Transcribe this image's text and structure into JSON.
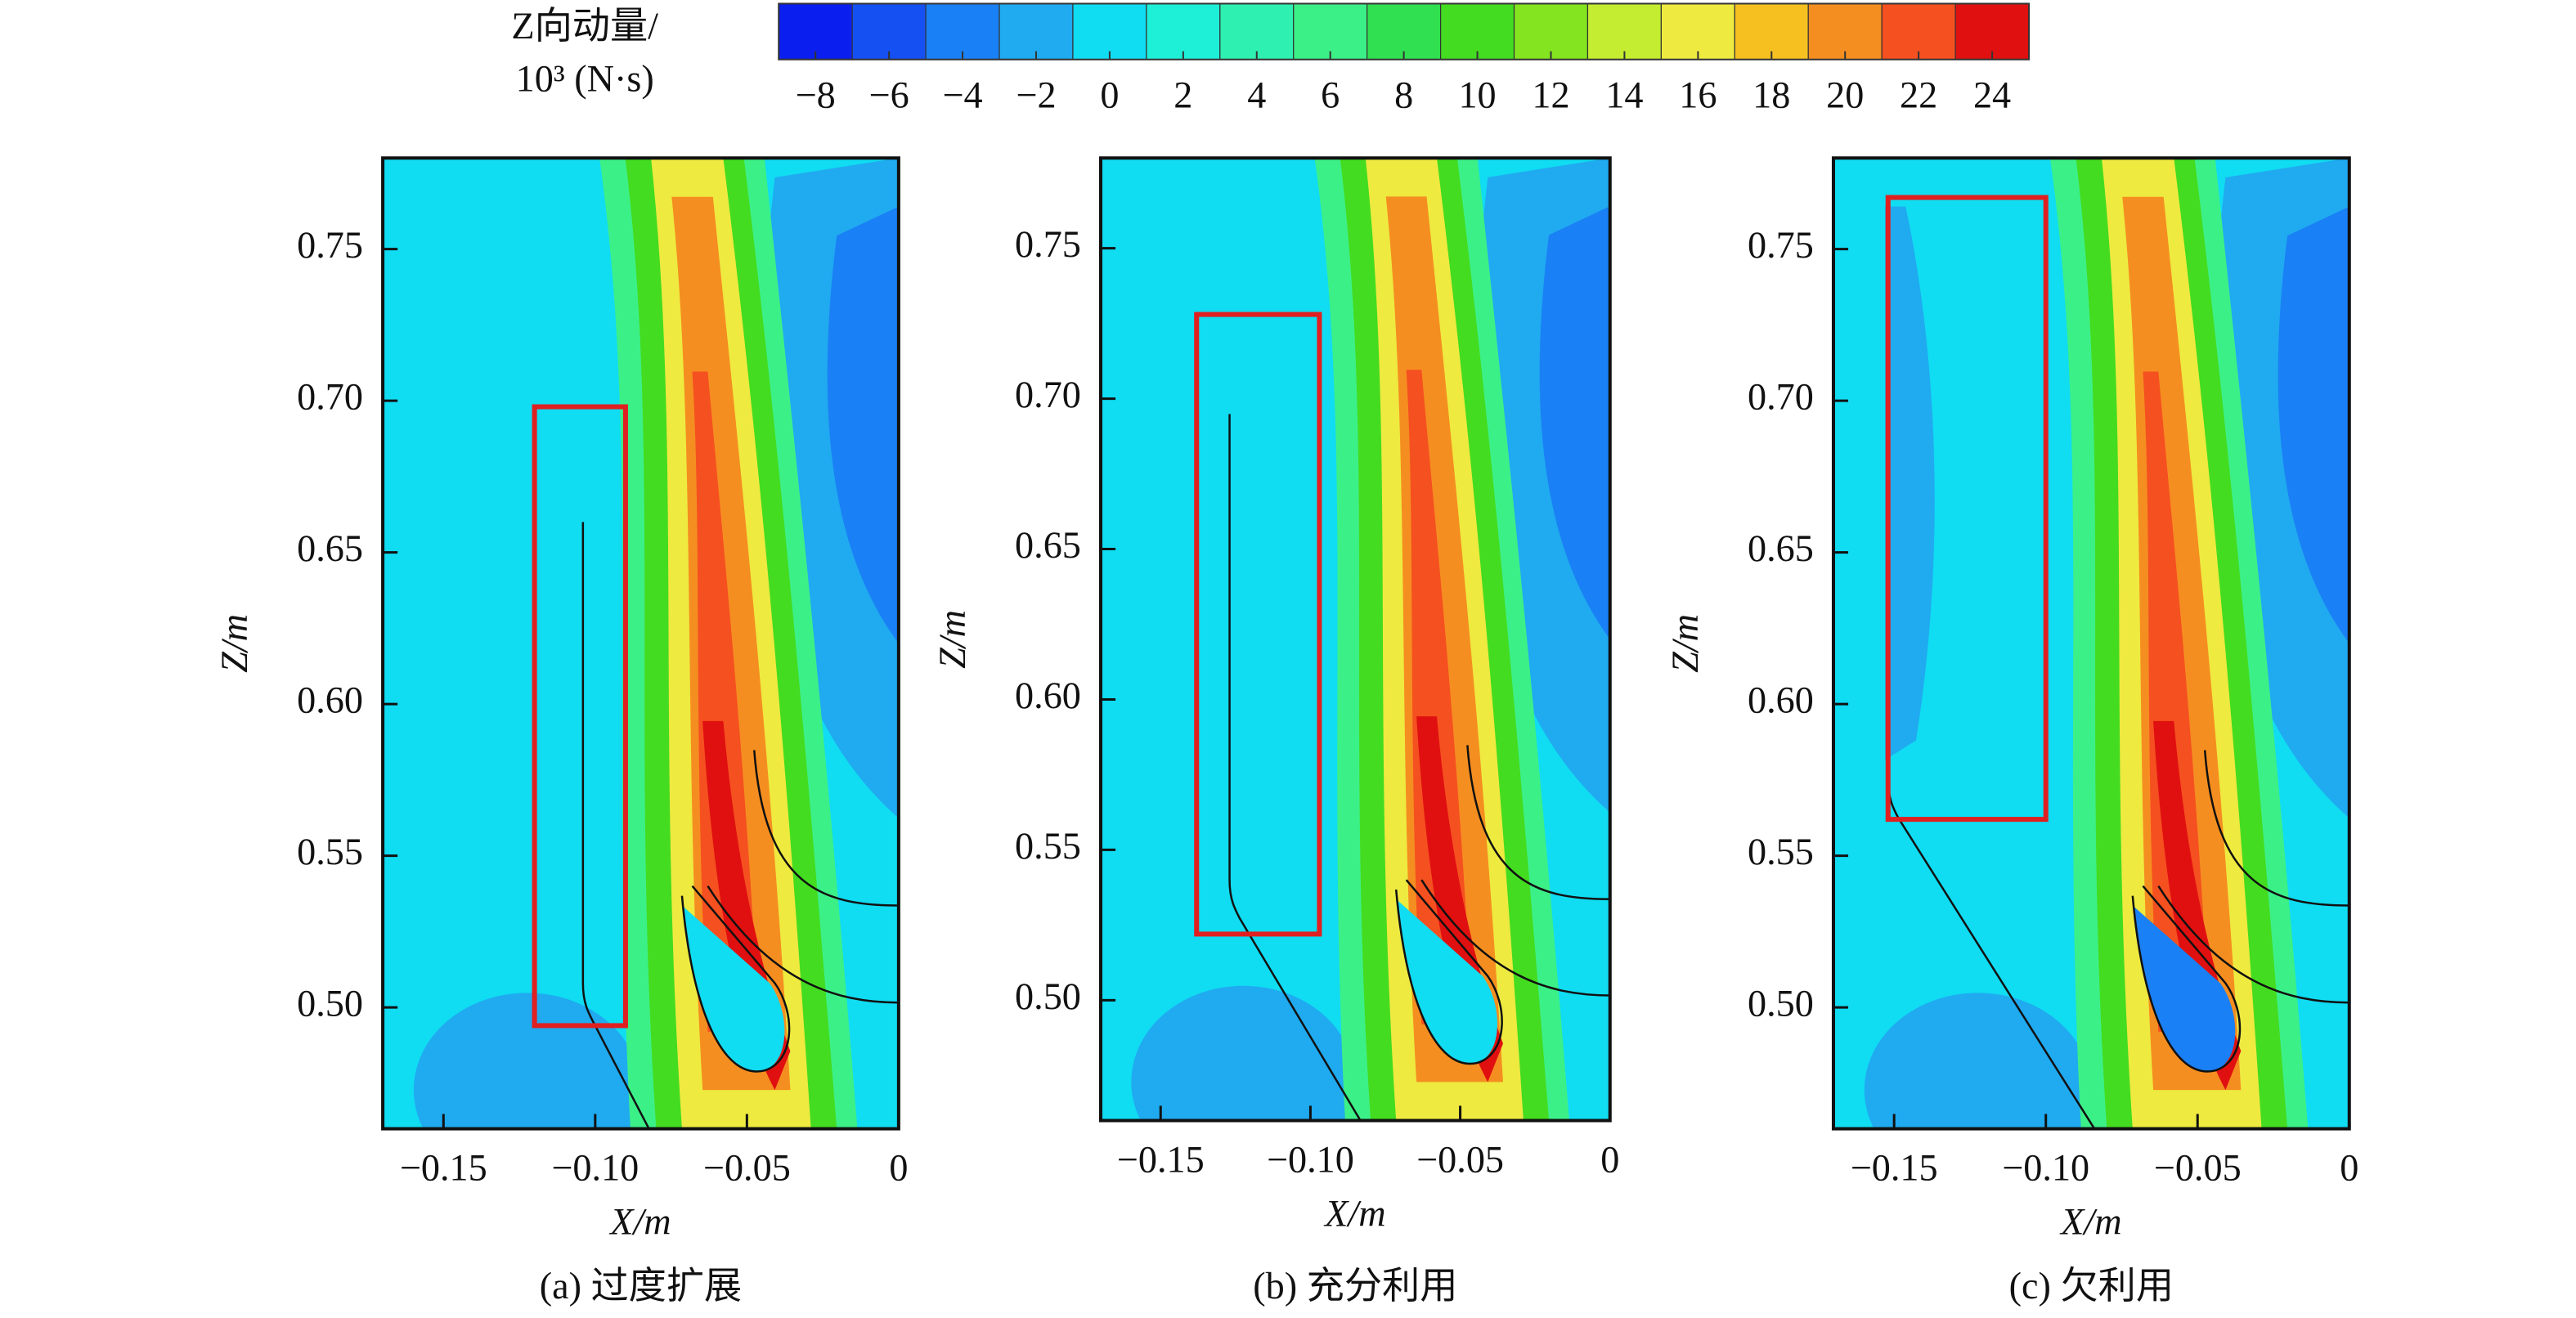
{
  "colorbar": {
    "label": [
      "Z向动量/",
      "10³ (N·s)"
    ],
    "lim": [
      -9,
      25
    ],
    "ticks": [
      {
        "value": -8,
        "label": "−8"
      },
      {
        "value": -6,
        "label": "−6"
      },
      {
        "value": -4,
        "label": "−4"
      },
      {
        "value": -2,
        "label": "−2"
      },
      0,
      2,
      4,
      6,
      8,
      10,
      12,
      14,
      16,
      18,
      20,
      22,
      24
    ],
    "colors": [
      "#0a1ef0",
      "#1450f2",
      "#1a80f5",
      "#20aaf0",
      "#10dcf2",
      "#1ef0d8",
      "#2ef0b0",
      "#3cf088",
      "#30e050",
      "#44dc20",
      "#84e420",
      "#c4ec30",
      "#eeea40",
      "#f5c020",
      "#f58e20",
      "#f55020",
      "#e01010"
    ]
  },
  "chart_data": [
    {
      "type": "contour",
      "caption": "(a) 过度扩展",
      "xlabel": "X/m",
      "ylabel": "Z/m",
      "xlim": [
        -0.17,
        0
      ],
      "ylim": [
        0.46,
        0.78
      ],
      "xticks": [
        {
          "value": -0.15,
          "label": "−0.15"
        },
        {
          "value": -0.1,
          "label": "−0.10"
        },
        {
          "value": -0.05,
          "label": "−0.05"
        },
        0
      ],
      "yticks": [
        {
          "value": 0.5,
          "label": "0.50"
        },
        0.55,
        {
          "value": 0.6,
          "label": "0.60"
        },
        0.65,
        {
          "value": 0.7,
          "label": "0.70"
        },
        0.75
      ],
      "highlight": {
        "x": [
          -0.12,
          -0.09
        ],
        "y": [
          0.494,
          0.698
        ],
        "color": "#e02020"
      }
    },
    {
      "type": "contour",
      "caption": "(b) 充分利用",
      "xlabel": "X/m",
      "ylabel": "Z/m",
      "xlim": [
        -0.17,
        0
      ],
      "ylim": [
        0.46,
        0.78
      ],
      "xticks": [
        {
          "value": -0.15,
          "label": "−0.15"
        },
        {
          "value": -0.1,
          "label": "−0.10"
        },
        {
          "value": -0.05,
          "label": "−0.05"
        },
        0
      ],
      "yticks": [
        {
          "value": 0.5,
          "label": "0.50"
        },
        0.55,
        {
          "value": 0.6,
          "label": "0.60"
        },
        0.65,
        {
          "value": 0.7,
          "label": "0.70"
        },
        0.75
      ],
      "highlight": {
        "x": [
          -0.138,
          -0.097
        ],
        "y": [
          0.522,
          0.728
        ],
        "color": "#e02020"
      }
    },
    {
      "type": "contour",
      "caption": "(c) 欠利用",
      "xlabel": "X/m",
      "ylabel": "Z/m",
      "xlim": [
        -0.17,
        0
      ],
      "ylim": [
        0.46,
        0.78
      ],
      "xticks": [
        {
          "value": -0.15,
          "label": "−0.15"
        },
        {
          "value": -0.1,
          "label": "−0.10"
        },
        {
          "value": -0.05,
          "label": "−0.05"
        },
        0
      ],
      "yticks": [
        {
          "value": 0.5,
          "label": "0.50"
        },
        0.55,
        {
          "value": 0.6,
          "label": "0.60"
        },
        0.65,
        {
          "value": 0.7,
          "label": "0.70"
        },
        0.75
      ],
      "highlight": {
        "x": [
          -0.152,
          -0.1
        ],
        "y": [
          0.562,
          0.767
        ],
        "color": "#e02020"
      }
    }
  ]
}
